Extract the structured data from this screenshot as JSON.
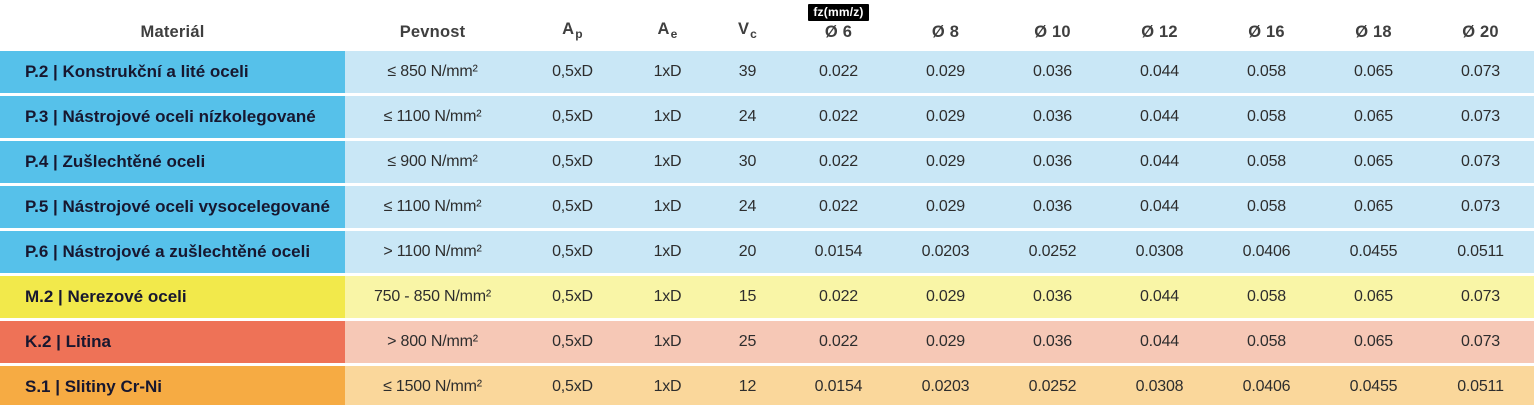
{
  "colors": {
    "page_bg": "#ffffff",
    "header_text": "#3f3f3f",
    "material_text": "#17172f",
    "data_text": "#2d2d2d",
    "badge_bg": "#000000",
    "badge_text": "#ffffff",
    "themes": {
      "blue": {
        "dark": "#56c1ea",
        "light": "#c9e7f6"
      },
      "yellow": {
        "dark": "#f2e94b",
        "light": "#f9f5a6"
      },
      "coral": {
        "dark": "#ee7257",
        "light": "#f6c8b6"
      },
      "orange": {
        "dark": "#f6ab43",
        "light": "#fad79b"
      }
    }
  },
  "chart_data": {
    "type": "table",
    "title": "",
    "header": {
      "fz_group_label": "fz(mm/z)",
      "columns": [
        {
          "key": "material",
          "label": "Materiál"
        },
        {
          "key": "pevnost",
          "label": "Pevnost"
        },
        {
          "key": "ap",
          "label": "A",
          "sub": "p"
        },
        {
          "key": "ae",
          "label": "A",
          "sub": "e"
        },
        {
          "key": "vc",
          "label": "V",
          "sub": "c"
        },
        {
          "key": "d6",
          "label": "Ø 6",
          "group": "fz"
        },
        {
          "key": "d8",
          "label": "Ø 8",
          "group": "fz"
        },
        {
          "key": "d10",
          "label": "Ø 10",
          "group": "fz"
        },
        {
          "key": "d12",
          "label": "Ø 12",
          "group": "fz"
        },
        {
          "key": "d16",
          "label": "Ø 16",
          "group": "fz"
        },
        {
          "key": "d18",
          "label": "Ø 18",
          "group": "fz"
        },
        {
          "key": "d20",
          "label": "Ø 20",
          "group": "fz"
        }
      ]
    },
    "rows": [
      {
        "theme": "blue",
        "material": "P.2 | Konstrukční a lité oceli",
        "pevnost": "≤ 850 N/mm²",
        "ap": "0,5xD",
        "ae": "1xD",
        "vc": "39",
        "fz": [
          "0.022",
          "0.029",
          "0.036",
          "0.044",
          "0.058",
          "0.065",
          "0.073"
        ]
      },
      {
        "theme": "blue",
        "material": "P.3 | Nástrojové oceli nízkolegované",
        "pevnost": "≤ 1100 N/mm²",
        "ap": "0,5xD",
        "ae": "1xD",
        "vc": "24",
        "fz": [
          "0.022",
          "0.029",
          "0.036",
          "0.044",
          "0.058",
          "0.065",
          "0.073"
        ]
      },
      {
        "theme": "blue",
        "material": "P.4 | Zušlechtěné oceli",
        "pevnost": "≤ 900 N/mm²",
        "ap": "0,5xD",
        "ae": "1xD",
        "vc": "30",
        "fz": [
          "0.022",
          "0.029",
          "0.036",
          "0.044",
          "0.058",
          "0.065",
          "0.073"
        ]
      },
      {
        "theme": "blue",
        "material": "P.5 | Nástrojové oceli vysocelegované",
        "pevnost": "≤ 1100 N/mm²",
        "ap": "0,5xD",
        "ae": "1xD",
        "vc": "24",
        "fz": [
          "0.022",
          "0.029",
          "0.036",
          "0.044",
          "0.058",
          "0.065",
          "0.073"
        ]
      },
      {
        "theme": "blue",
        "material": "P.6 | Nástrojové a zušlechtěné oceli",
        "pevnost": "> 1100 N/mm²",
        "ap": "0,5xD",
        "ae": "1xD",
        "vc": "20",
        "fz": [
          "0.0154",
          "0.0203",
          "0.0252",
          "0.0308",
          "0.0406",
          "0.0455",
          "0.0511"
        ]
      },
      {
        "theme": "yellow",
        "material": "M.2 | Nerezové oceli",
        "pevnost": "750 - 850 N/mm²",
        "ap": "0,5xD",
        "ae": "1xD",
        "vc": "15",
        "fz": [
          "0.022",
          "0.029",
          "0.036",
          "0.044",
          "0.058",
          "0.065",
          "0.073"
        ]
      },
      {
        "theme": "coral",
        "material": "K.2 | Litina",
        "pevnost": "> 800 N/mm²",
        "ap": "0,5xD",
        "ae": "1xD",
        "vc": "25",
        "fz": [
          "0.022",
          "0.029",
          "0.036",
          "0.044",
          "0.058",
          "0.065",
          "0.073"
        ]
      },
      {
        "theme": "orange",
        "material": "S.1 | Slitiny Cr-Ni",
        "pevnost": "≤ 1500 N/mm²",
        "ap": "0,5xD",
        "ae": "1xD",
        "vc": "12",
        "fz": [
          "0.0154",
          "0.0203",
          "0.0252",
          "0.0308",
          "0.0406",
          "0.0455",
          "0.0511"
        ]
      }
    ]
  }
}
